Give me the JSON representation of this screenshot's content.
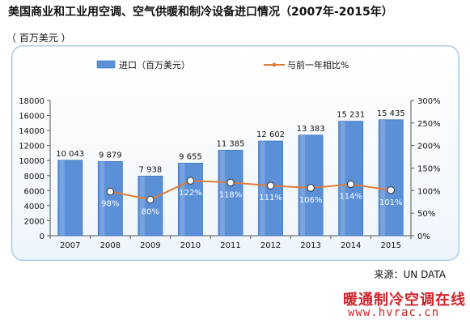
{
  "title": "美国商业和工业用空调、空气供暖和制冷设备进口情况（2007年-2015年）",
  "unit_label": "（ 百万美元 ）",
  "source": "来源：UN DATA",
  "watermark": {
    "logo_text": "暖通制冷空调在线",
    "url": "www.hvrac.cn"
  },
  "colors": {
    "bar": "#5b8fd6",
    "bar_dark": "#3f74c1",
    "line": "#e07b39",
    "marker": "#ffffff"
  },
  "chart_data": {
    "type": "bar",
    "categories": [
      "2007",
      "2008",
      "2009",
      "2010",
      "2011",
      "2012",
      "2013",
      "2014",
      "2015"
    ],
    "series": [
      {
        "name": "进口（百万美元）",
        "type": "bar",
        "axis": "left",
        "values": [
          10043,
          9879,
          7938,
          9655,
          11385,
          12602,
          13383,
          15231,
          15435
        ],
        "labels": [
          "10 043",
          "9 879",
          "7 938",
          "9 655",
          "11 385",
          "12 602",
          "13 383",
          "15 231",
          "15 435"
        ]
      },
      {
        "name": "与前一年相比%",
        "type": "line",
        "axis": "right",
        "values": [
          null,
          98,
          80,
          122,
          118,
          111,
          106,
          114,
          101
        ],
        "labels": [
          "",
          "98%",
          "80%",
          "122%",
          "118%",
          "111%",
          "106%",
          "114%",
          "101%"
        ]
      }
    ],
    "y_left": {
      "min": 0,
      "max": 18000,
      "step": 2000,
      "ticks": [
        "0",
        "2000",
        "4000",
        "6000",
        "8000",
        "10000",
        "12000",
        "14000",
        "16000",
        "18000"
      ]
    },
    "y_right": {
      "min": 0,
      "max": 300,
      "step": 50,
      "ticks": [
        "0%",
        "50%",
        "100%",
        "150%",
        "200%",
        "250%",
        "300%"
      ]
    },
    "legend_position": "top",
    "grid": false
  }
}
